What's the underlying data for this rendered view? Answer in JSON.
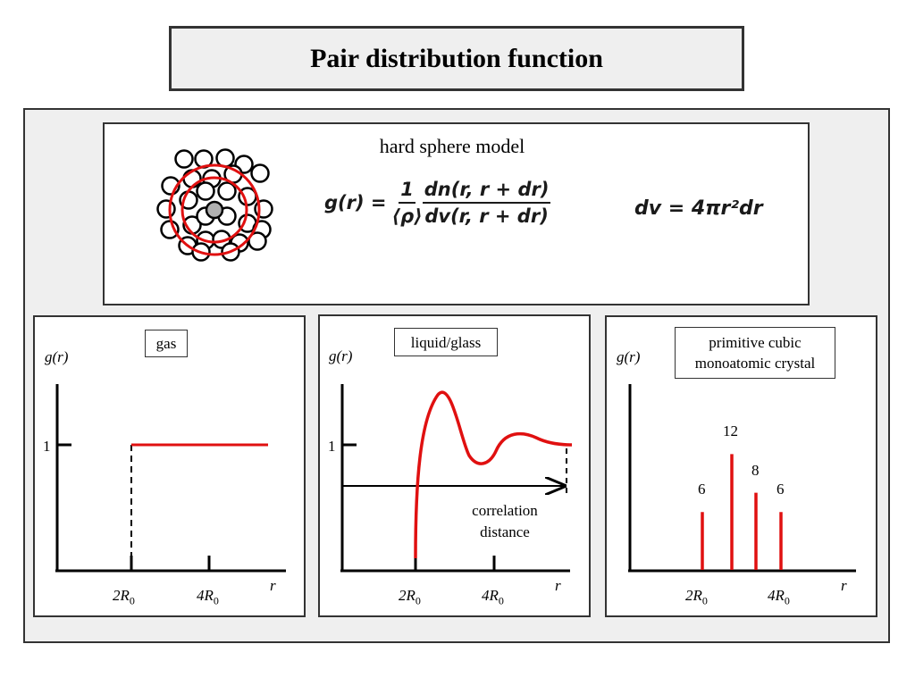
{
  "title": "Pair distribution function",
  "model": {
    "label": "hard sphere model",
    "formula_lhs": "g(r) =",
    "formula_num_left": "1",
    "formula_den_left": "⟨ρ⟩",
    "formula_num_right": "dn(r, r + dr)",
    "formula_den_right": "dv(r, r + dr)",
    "dv_formula": "dv = 4πr²dr"
  },
  "panels": {
    "gas": {
      "tag": "gas",
      "ylabel": "g(r)",
      "xlabel": "r",
      "y_tick": "1",
      "x_ticks": [
        "2R",
        "4R"
      ],
      "subscript": "0"
    },
    "liquid": {
      "tag": "liquid/glass",
      "ylabel": "g(r)",
      "xlabel": "r",
      "y_tick": "1",
      "x_ticks": [
        "2R",
        "4R"
      ],
      "subscript": "0",
      "annotation": "correlation distance"
    },
    "crystal": {
      "tag": "primitive cubic monoatomic crystal",
      "ylabel": "g(r)",
      "xlabel": "r",
      "x_ticks": [
        "2R",
        "4R"
      ],
      "subscript": "0",
      "peaks": [
        {
          "label": "6",
          "height": 6
        },
        {
          "label": "12",
          "height": 12
        },
        {
          "label": "8",
          "height": 8
        },
        {
          "label": "6",
          "height": 6
        }
      ]
    }
  },
  "colors": {
    "curve": "#e01010",
    "axis": "#000000"
  }
}
